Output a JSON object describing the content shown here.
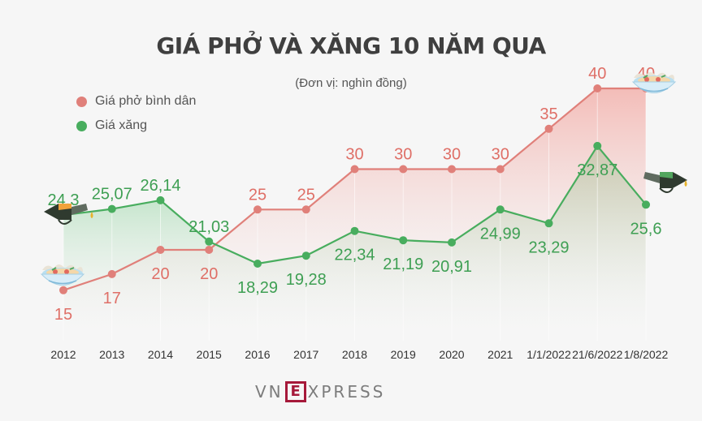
{
  "header": {
    "title": "GIÁ PHỞ VÀ XĂNG 10 NĂM QUA",
    "subtitle": "(Đơn vị: nghìn đồng)"
  },
  "legend": [
    {
      "label": "Giá phở bình dân",
      "color": "#e0807a"
    },
    {
      "label": "Giá xăng",
      "color": "#48ad5e"
    }
  ],
  "logo": {
    "left": "VN",
    "box": "E",
    "right": "XPRESS"
  },
  "chart_data": {
    "type": "line",
    "title": "GIÁ PHỞ VÀ XĂNG 10 NĂM QUA",
    "subtitle": "(Đơn vị: nghìn đồng)",
    "xlabel": "",
    "ylabel": "",
    "categories": [
      "2012",
      "2013",
      "2014",
      "2015",
      "2016",
      "2017",
      "2018",
      "2019",
      "2020",
      "2021",
      "1/1/2022",
      "21/6/2022",
      "1/8/2022"
    ],
    "series": [
      {
        "name": "Giá phở bình dân",
        "color": "#e0807a",
        "values": [
          15,
          17,
          20,
          20,
          25,
          25,
          30,
          30,
          30,
          30,
          35,
          40,
          40
        ],
        "labels": [
          "15",
          "17",
          "20",
          "20",
          "25",
          "25",
          "30",
          "30",
          "30",
          "30",
          "35",
          "40",
          "40"
        ]
      },
      {
        "name": "Giá xăng",
        "color": "#48ad5e",
        "values": [
          24.3,
          25.07,
          26.14,
          21.03,
          18.29,
          19.28,
          22.34,
          21.19,
          20.91,
          24.99,
          23.29,
          32.87,
          25.6
        ],
        "labels": [
          "24,3",
          "25,07",
          "26,14",
          "21,03",
          "18,29",
          "19,28",
          "22,34",
          "21,19",
          "20,91",
          "24,99",
          "23,29",
          "32,87",
          "25,6"
        ]
      }
    ],
    "grid": false,
    "legend_position": "top-left",
    "icons": [
      "pho-bowl-icon",
      "fuel-nozzle-icon"
    ]
  }
}
